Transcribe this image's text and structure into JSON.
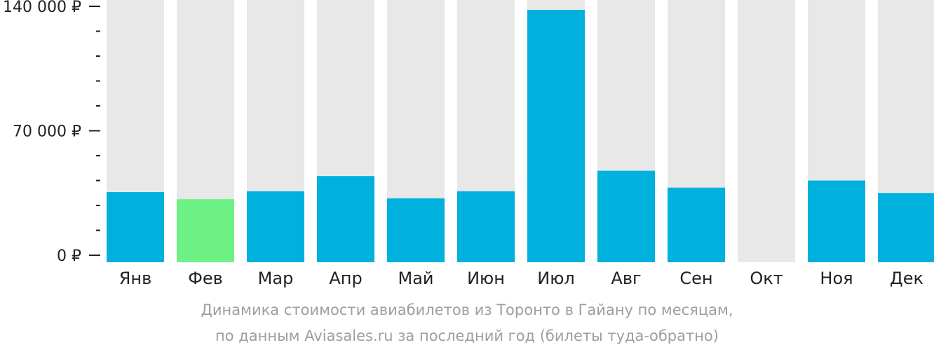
{
  "chart_data": {
    "type": "bar",
    "categories": [
      "Янв",
      "Фев",
      "Мар",
      "Апр",
      "Май",
      "Июн",
      "Июл",
      "Авг",
      "Сен",
      "Окт",
      "Ноя",
      "Дек"
    ],
    "values": [
      35500,
      31500,
      36000,
      44500,
      32000,
      36000,
      138000,
      47500,
      38000,
      null,
      42000,
      35000
    ],
    "highlight_index": 1,
    "ylim": [
      0,
      140000
    ],
    "yticks": [
      {
        "value": 140000,
        "label": "140 000 ₽"
      },
      {
        "value": 70000,
        "label": "70 000 ₽"
      },
      {
        "value": 0,
        "label": "0 ₽"
      }
    ],
    "minor_tick_step": 14000,
    "grid": false,
    "title": "",
    "xlabel": "",
    "ylabel": ""
  },
  "caption": {
    "line1": "Динамика стоимости авиабилетов из Торонто в Гайану по месяцам,",
    "line2": "по данным Aviasales.ru за последний год (билеты туда-обратно)"
  },
  "colors": {
    "bar": "#00b0dd",
    "highlight": "#6ef184",
    "background_column": "#e8e8e8",
    "axis": "#222222",
    "caption": "#9e9e9e"
  }
}
